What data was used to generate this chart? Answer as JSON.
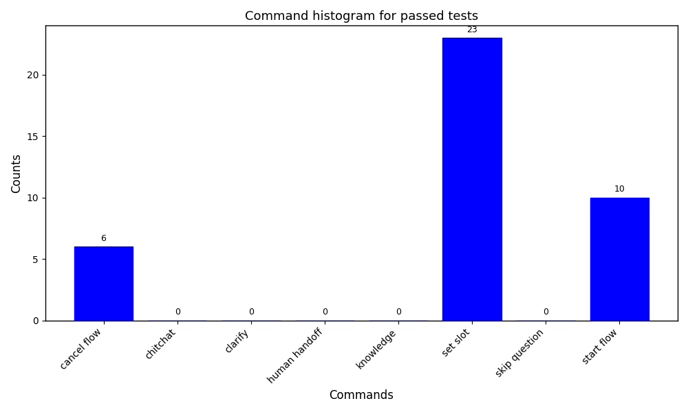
{
  "title": "Command histogram for passed tests",
  "xlabel": "Commands",
  "ylabel": "Counts",
  "categories": [
    "cancel flow",
    "chitchat",
    "clarify",
    "human handoff",
    "knowledge",
    "set slot",
    "skip question",
    "start flow"
  ],
  "values": [
    6,
    0,
    0,
    0,
    0,
    23,
    0,
    10
  ],
  "bar_color": "#0000ff",
  "ylim": [
    0,
    24
  ],
  "yticks": [
    0,
    5,
    10,
    15,
    20
  ],
  "title_fontsize": 13,
  "label_fontsize": 12,
  "tick_fontsize": 10,
  "annotation_fontsize": 9,
  "background_color": "#ffffff",
  "figsize": [
    10,
    6
  ],
  "dpi": 100,
  "bar_width": 0.8
}
